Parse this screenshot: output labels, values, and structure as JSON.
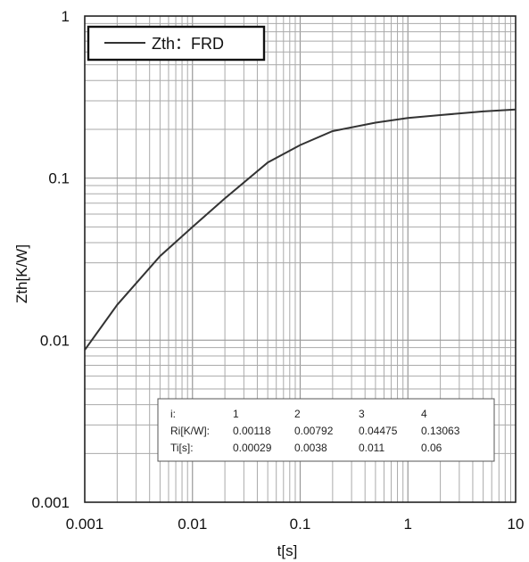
{
  "chart_data": {
    "type": "line",
    "title": "",
    "xlabel": "t[s]",
    "ylabel": "Zth[K/W]",
    "x_scale": "log",
    "y_scale": "log",
    "xlim": [
      0.001,
      10
    ],
    "ylim": [
      0.001,
      1
    ],
    "grid": true,
    "legend_position": "top-left",
    "x_ticks": [
      "0.001",
      "0.01",
      "0.1",
      "1",
      "10"
    ],
    "y_ticks": [
      "0.001",
      "0.01",
      "0.1",
      "1"
    ],
    "series": [
      {
        "name": "Zth：FRD",
        "color": "#333333",
        "x": [
          0.001,
          0.002,
          0.005,
          0.01,
          0.02,
          0.05,
          0.1,
          0.2,
          0.5,
          1,
          2,
          5,
          10
        ],
        "y": [
          0.0087,
          0.0165,
          0.033,
          0.05,
          0.075,
          0.125,
          0.16,
          0.195,
          0.22,
          0.235,
          0.245,
          0.258,
          0.265
        ]
      }
    ],
    "table": {
      "rows": [
        {
          "label": "i:",
          "values": [
            "1",
            "2",
            "3",
            "4"
          ]
        },
        {
          "label": "Ri[K/W]:",
          "values": [
            "0.00118",
            "0.00792",
            "0.04475",
            "0.13063"
          ]
        },
        {
          "label": "Ti[s]:",
          "values": [
            "0.00029",
            "0.0038",
            "0.011",
            "0.06"
          ]
        }
      ]
    }
  }
}
